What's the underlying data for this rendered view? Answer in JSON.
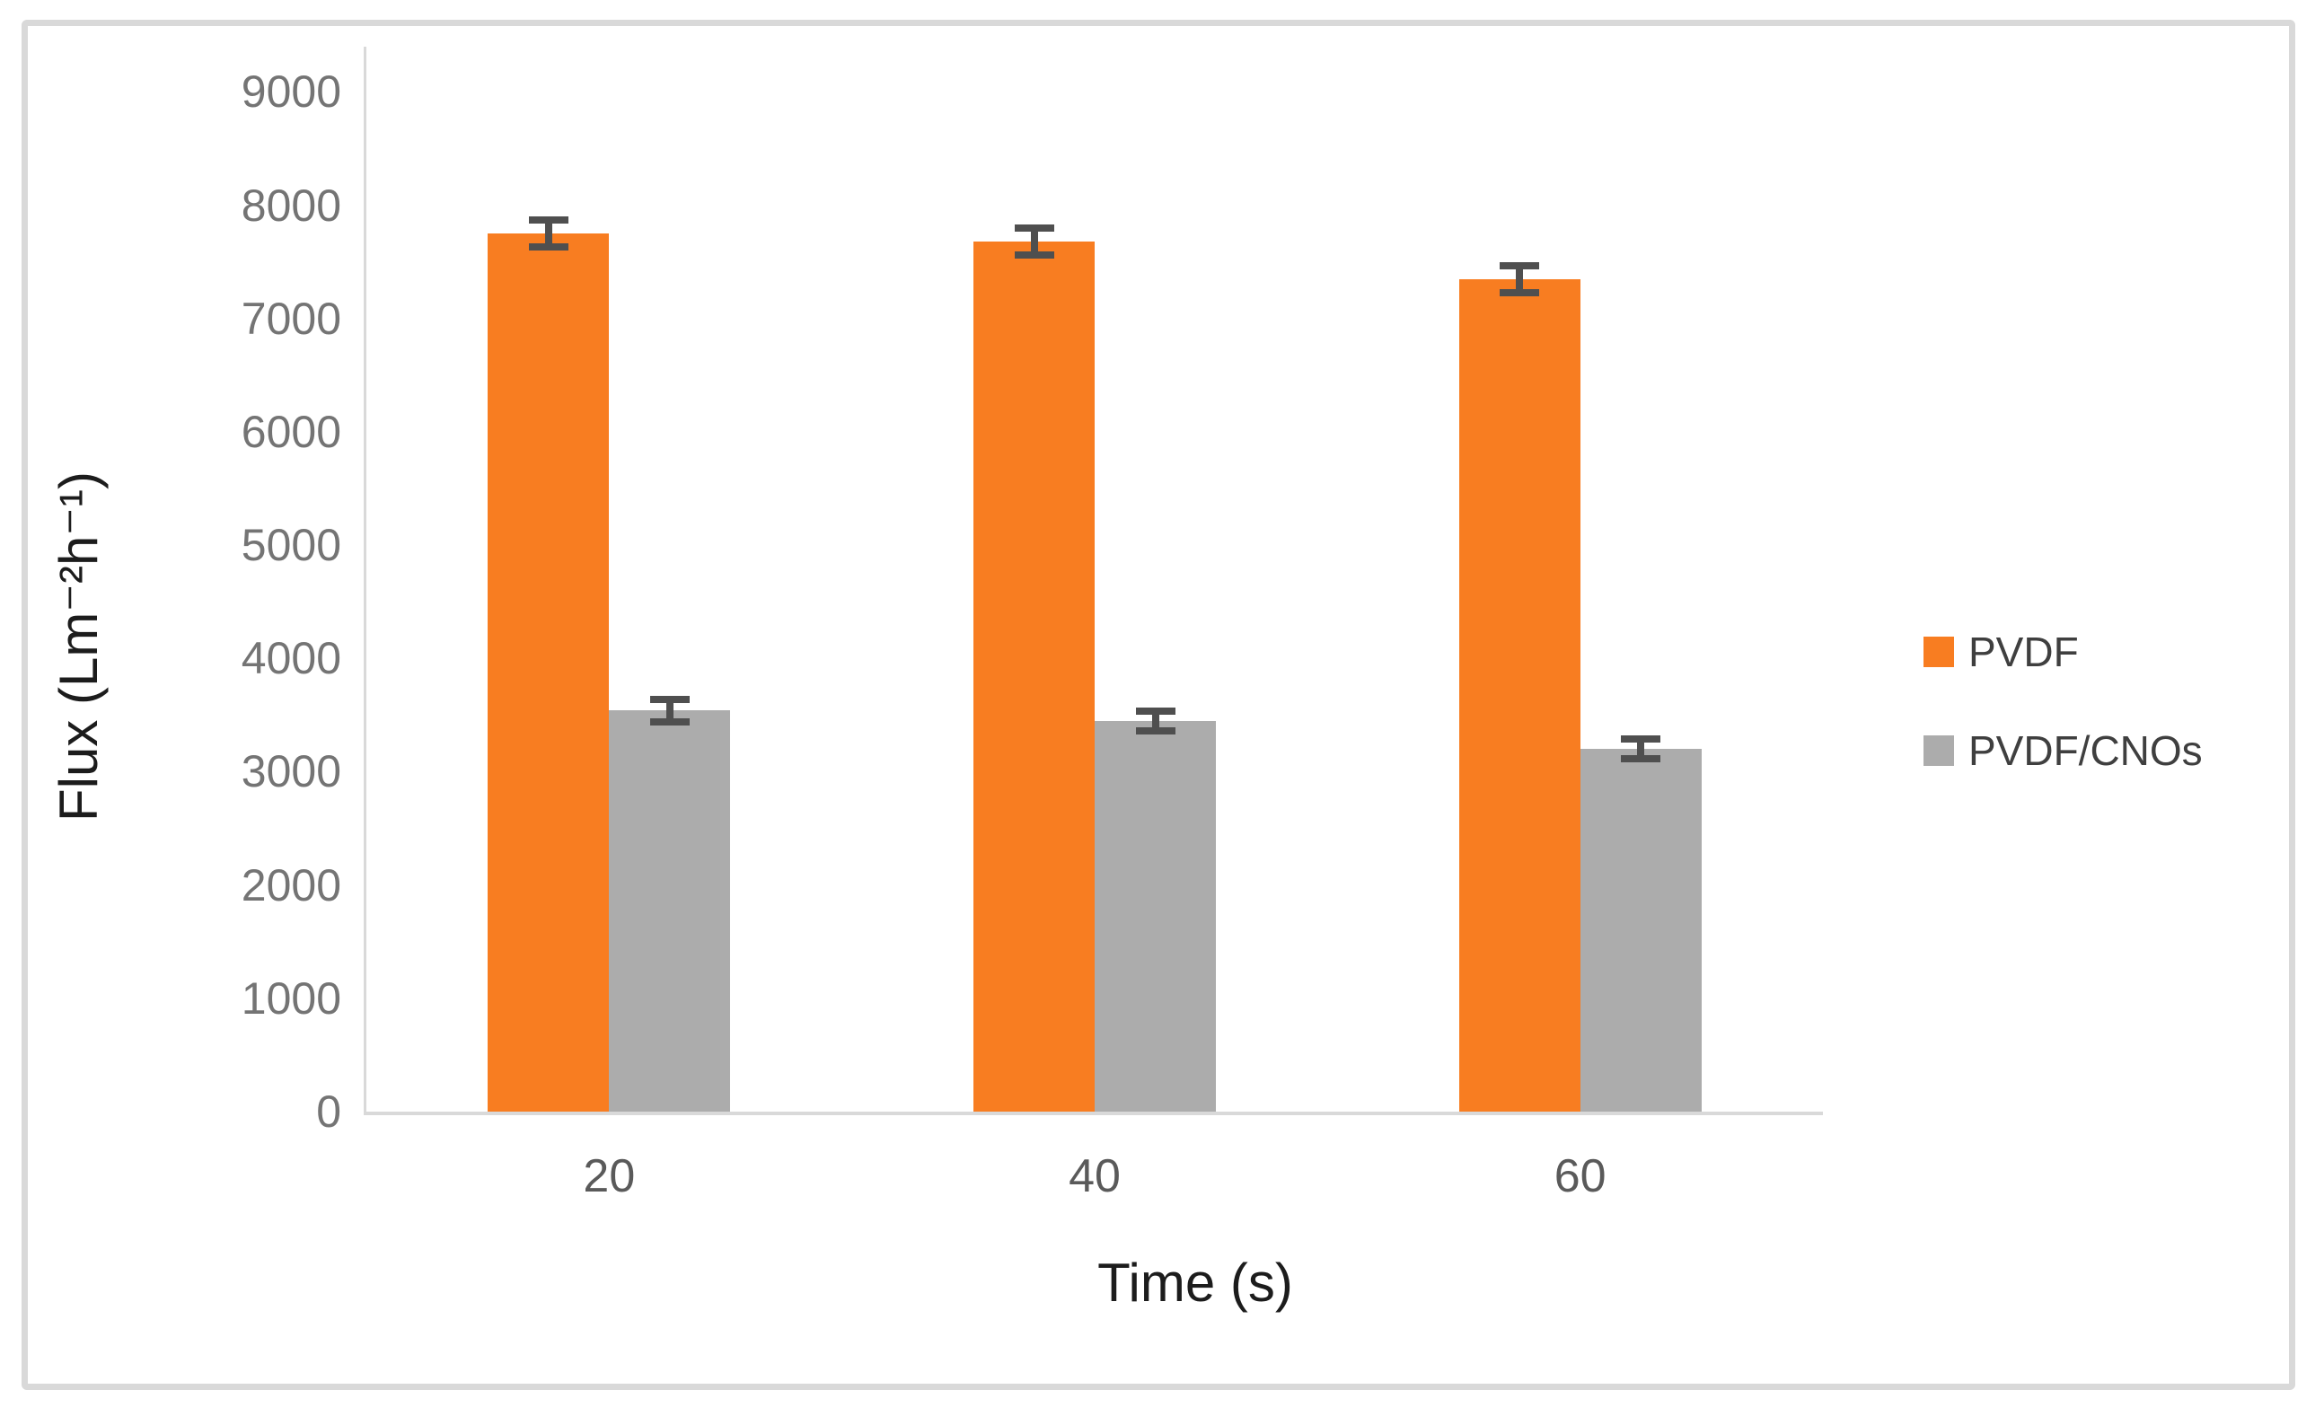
{
  "style": {
    "background": "#ffffff",
    "frame_border": "#d9d9d9",
    "axis_line": "#d9d9d9",
    "error_bar": "#4f4f4f",
    "y_tick_label": "#747474",
    "x_tick_label": "#5a5a5a",
    "axis_title": "#1c1c1c",
    "legend_text": "#3f3f3f"
  },
  "chart_data": {
    "type": "bar",
    "title": "",
    "xlabel": "Time (s)",
    "ylabel": "Flux (Lm⁻²h⁻¹)",
    "categories": [
      "20",
      "40",
      "60"
    ],
    "series": [
      {
        "name": "PVDF",
        "color": "#f87d21",
        "values": [
          7750,
          7680,
          7350
        ],
        "errors": [
          150,
          150,
          150
        ]
      },
      {
        "name": "PVDF/CNOs",
        "color": "#acacac",
        "values": [
          3540,
          3450,
          3200
        ],
        "errors": [
          130,
          120,
          120
        ]
      }
    ],
    "ylim": [
      0,
      9400
    ],
    "yticks": [
      0,
      1000,
      2000,
      3000,
      4000,
      5000,
      6000,
      7000,
      8000,
      9000
    ],
    "grid": false,
    "error_bars": true,
    "legend_position": "center-right"
  }
}
